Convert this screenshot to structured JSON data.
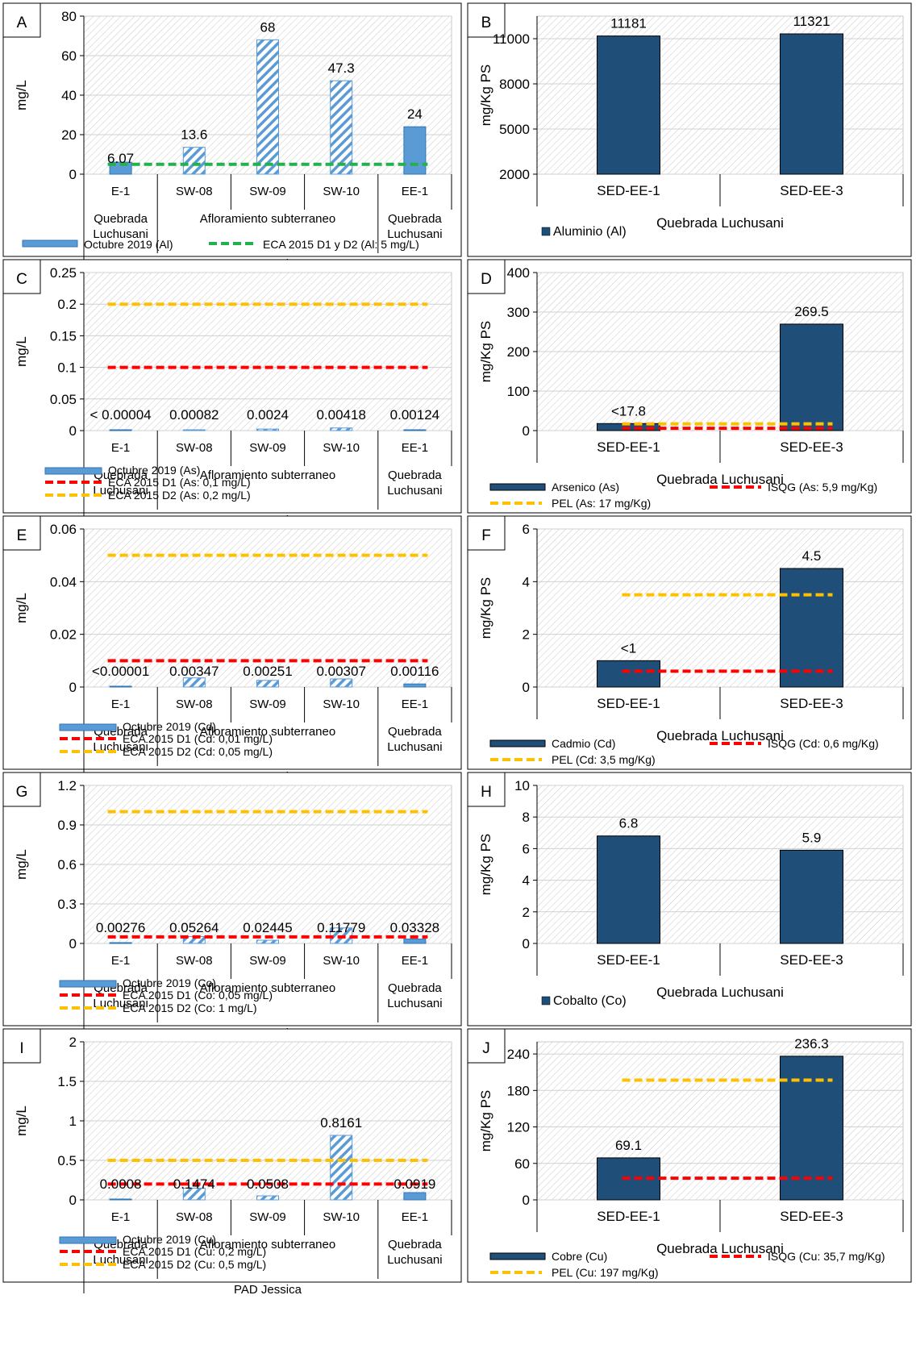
{
  "chart_data": [
    {
      "panel": "A",
      "type": "bar",
      "ylabel": "mg/L",
      "ylim": [
        0,
        80
      ],
      "yticks": [
        0,
        20,
        40,
        60,
        80
      ],
      "categories": [
        "E-1",
        "SW-08",
        "SW-09",
        "SW-10",
        "EE-1"
      ],
      "bar_styles": [
        "solid",
        "hatch",
        "hatch",
        "hatch",
        "solid"
      ],
      "groups": [
        {
          "label": [
            "Quebrada",
            "Luchusani"
          ],
          "from": 0,
          "to": 0
        },
        {
          "label": [
            "Afloramiento subterraneo"
          ],
          "from": 1,
          "to": 3
        },
        {
          "label": [
            "Quebrada",
            "Luchusani"
          ],
          "from": 4,
          "to": 4
        }
      ],
      "super_group": "PAD Jessica",
      "series": [
        {
          "name": "Octubre 2019 (Al)",
          "values": [
            6.07,
            13.6,
            68,
            47.3,
            24
          ],
          "data_labels": [
            "6.07",
            "13.6",
            "68",
            "47.3",
            "24"
          ],
          "color": "#5b9bd5"
        }
      ],
      "reference_lines": [
        {
          "name": "ECA 2015 D1 y D2 (Al: 5 mg/L)",
          "value": 5,
          "color": "#22b14c"
        }
      ],
      "legend": "bottom-inline"
    },
    {
      "panel": "B",
      "type": "bar",
      "ylabel": "mg/Kg PS",
      "ylim": [
        2000,
        12500
      ],
      "yticks": [
        2000,
        5000,
        8000,
        11000
      ],
      "categories": [
        "SED-EE-1",
        "SED-EE-3"
      ],
      "super_group": "Quebrada Luchusani",
      "series": [
        {
          "name": "Aluminio (Al)",
          "values": [
            11181,
            11321
          ],
          "data_labels": [
            "11181",
            "11321"
          ],
          "color": "#1f4e79"
        }
      ],
      "reference_lines": [],
      "legend": "bottom"
    },
    {
      "panel": "C",
      "type": "bar",
      "ylabel": "mg/L",
      "ylim": [
        0,
        0.25
      ],
      "yticks": [
        0,
        0.05,
        0.1,
        0.15,
        0.2,
        0.25
      ],
      "categories": [
        "E-1",
        "SW-08",
        "SW-09",
        "SW-10",
        "EE-1"
      ],
      "bar_styles": [
        "solid",
        "hatch",
        "hatch",
        "hatch",
        "solid"
      ],
      "groups": [
        {
          "label": [
            "Quebrada",
            "Luchusani"
          ],
          "from": 0,
          "to": 0
        },
        {
          "label": [
            "Afloramiento subterraneo"
          ],
          "from": 1,
          "to": 3
        },
        {
          "label": [
            "Quebrada",
            "Luchusani"
          ],
          "from": 4,
          "to": 4
        }
      ],
      "super_group": "PAD Jessica",
      "series": [
        {
          "name": "Octubre 2019 (As)",
          "values": [
            4e-05,
            0.00082,
            0.0024,
            0.00418,
            0.00124
          ],
          "data_labels": [
            "< 0.00004",
            "0.00082",
            "0.0024",
            "0.00418",
            "0.00124"
          ],
          "color": "#5b9bd5"
        }
      ],
      "reference_lines": [
        {
          "name": "ECA 2015 D1 (As: 0,1 mg/L)",
          "value": 0.1,
          "color": "#ff0000"
        },
        {
          "name": "ECA 2015 D2 (As: 0,2 mg/L)",
          "value": 0.2,
          "color": "#ffc000"
        }
      ],
      "legend": "bottom-stacked"
    },
    {
      "panel": "D",
      "type": "bar",
      "ylabel": "mg/Kg PS",
      "ylim": [
        0,
        400
      ],
      "yticks": [
        0,
        100,
        200,
        300,
        400
      ],
      "categories": [
        "SED-EE-1",
        "SED-EE-3"
      ],
      "super_group": "Quebrada Luchusani",
      "series": [
        {
          "name": "Arsenico (As)",
          "values": [
            17.8,
            269.5
          ],
          "data_labels": [
            "<17.8",
            "269.5"
          ],
          "color": "#1f4e79"
        }
      ],
      "reference_lines": [
        {
          "name": "ISQG (As: 5,9 mg/Kg)",
          "value": 5.9,
          "color": "#ff0000"
        },
        {
          "name": "PEL (As: 17 mg/Kg)",
          "value": 17,
          "color": "#ffc000"
        }
      ],
      "legend": "bottom-grid"
    },
    {
      "panel": "E",
      "type": "bar",
      "ylabel": "mg/L",
      "ylim": [
        0,
        0.06
      ],
      "yticks": [
        0,
        0.02,
        0.04,
        0.06
      ],
      "categories": [
        "E-1",
        "SW-08",
        "SW-09",
        "SW-10",
        "EE-1"
      ],
      "bar_styles": [
        "solid",
        "hatch",
        "hatch",
        "hatch",
        "solid"
      ],
      "groups": [
        {
          "label": [
            "Quebrada",
            "Luchusani"
          ],
          "from": 0,
          "to": 0
        },
        {
          "label": [
            "Afloramiento subterraneo"
          ],
          "from": 1,
          "to": 3
        },
        {
          "label": [
            "Quebrada",
            "Luchusani"
          ],
          "from": 4,
          "to": 4
        }
      ],
      "super_group": "PAD Jessica",
      "series": [
        {
          "name": "Octubre 2019 (Cd)",
          "values": [
            1e-05,
            0.00347,
            0.00251,
            0.00307,
            0.00116
          ],
          "data_labels": [
            "<0.00001",
            "0.00347",
            "0.00251",
            "0.00307",
            "0.00116"
          ],
          "color": "#5b9bd5"
        }
      ],
      "reference_lines": [
        {
          "name": "ECA 2015 D1 (Cd: 0,01 mg/L)",
          "value": 0.01,
          "color": "#ff0000"
        },
        {
          "name": "ECA 2015 D2 (Cd: 0,05 mg/L)",
          "value": 0.05,
          "color": "#ffc000"
        }
      ],
      "legend": "bottom-stacked"
    },
    {
      "panel": "F",
      "type": "bar",
      "ylabel": "mg/Kg PS",
      "ylim": [
        0,
        6
      ],
      "yticks": [
        0,
        2,
        4,
        6
      ],
      "categories": [
        "SED-EE-1",
        "SED-EE-3"
      ],
      "super_group": "Quebrada Luchusani",
      "series": [
        {
          "name": "Cadmio (Cd)",
          "values": [
            1,
            4.5
          ],
          "data_labels": [
            "<1",
            "4.5"
          ],
          "color": "#1f4e79"
        }
      ],
      "reference_lines": [
        {
          "name": "ISQG (Cd: 0,6 mg/Kg)",
          "value": 0.6,
          "color": "#ff0000"
        },
        {
          "name": "PEL (Cd: 3,5 mg/Kg)",
          "value": 3.5,
          "color": "#ffc000"
        }
      ],
      "legend": "bottom-grid"
    },
    {
      "panel": "G",
      "type": "bar",
      "ylabel": "mg/L",
      "ylim": [
        0,
        1.2
      ],
      "yticks": [
        0,
        0.3,
        0.6,
        0.9,
        1.2
      ],
      "categories": [
        "E-1",
        "SW-08",
        "SW-09",
        "SW-10",
        "EE-1"
      ],
      "bar_styles": [
        "solid",
        "hatch",
        "hatch",
        "hatch",
        "solid"
      ],
      "groups": [
        {
          "label": [
            "Quebrada",
            "Luchusani"
          ],
          "from": 0,
          "to": 0
        },
        {
          "label": [
            "Afloramiento subterraneo"
          ],
          "from": 1,
          "to": 3
        },
        {
          "label": [
            "Quebrada",
            "Luchusani"
          ],
          "from": 4,
          "to": 4
        }
      ],
      "super_group": "PAD Jessica",
      "series": [
        {
          "name": "Octubre 2019 (Co)",
          "values": [
            0.00276,
            0.05264,
            0.02445,
            0.11779,
            0.03328
          ],
          "data_labels": [
            "0.00276",
            "0.05264",
            "0.02445",
            "0.11779",
            "0.03328"
          ],
          "color": "#5b9bd5"
        }
      ],
      "reference_lines": [
        {
          "name": "ECA 2015 D1 (Co: 0,05 mg/L)",
          "value": 0.05,
          "color": "#ff0000"
        },
        {
          "name": "ECA 2015 D2 (Co: 1 mg/L)",
          "value": 1,
          "color": "#ffc000"
        }
      ],
      "legend": "bottom-stacked"
    },
    {
      "panel": "H",
      "type": "bar",
      "ylabel": "mg/Kg PS",
      "ylim": [
        0,
        10
      ],
      "yticks": [
        0,
        2,
        4,
        6,
        8,
        10
      ],
      "categories": [
        "SED-EE-1",
        "SED-EE-3"
      ],
      "super_group": "Quebrada Luchusani",
      "series": [
        {
          "name": "Cobalto (Co)",
          "values": [
            6.8,
            5.9
          ],
          "data_labels": [
            "6.8",
            "5.9"
          ],
          "color": "#1f4e79"
        }
      ],
      "reference_lines": [],
      "legend": "bottom"
    },
    {
      "panel": "I",
      "type": "bar",
      "ylabel": "mg/L",
      "ylim": [
        0,
        2
      ],
      "yticks": [
        0,
        0.5,
        1,
        1.5,
        2
      ],
      "categories": [
        "E-1",
        "SW-08",
        "SW-09",
        "SW-10",
        "EE-1"
      ],
      "bar_styles": [
        "solid",
        "hatch",
        "hatch",
        "hatch",
        "solid"
      ],
      "groups": [
        {
          "label": [
            "Quebrada",
            "Luchusani"
          ],
          "from": 0,
          "to": 0
        },
        {
          "label": [
            "Afloramiento subterraneo"
          ],
          "from": 1,
          "to": 3
        },
        {
          "label": [
            "Quebrada",
            "Luchusani"
          ],
          "from": 4,
          "to": 4
        }
      ],
      "super_group": "PAD Jessica",
      "series": [
        {
          "name": "Octubre 2019 (Cu)",
          "values": [
            0.0008,
            0.1474,
            0.0508,
            0.8161,
            0.0919
          ],
          "data_labels": [
            "0.0008",
            "0.1474",
            "0.0508",
            "0.8161",
            "0.0919"
          ],
          "color": "#5b9bd5"
        }
      ],
      "reference_lines": [
        {
          "name": "ECA 2015 D1 (Cu: 0,2 mg/L)",
          "value": 0.2,
          "color": "#ff0000"
        },
        {
          "name": "ECA 2015 D2 (Cu: 0,5 mg/L)",
          "value": 0.5,
          "color": "#ffc000"
        }
      ],
      "legend": "bottom-stacked"
    },
    {
      "panel": "J",
      "type": "bar",
      "ylabel": "mg/Kg PS",
      "ylim": [
        0,
        260
      ],
      "yticks": [
        0,
        60,
        120,
        180,
        240
      ],
      "categories": [
        "SED-EE-1",
        "SED-EE-3"
      ],
      "super_group": "Quebrada Luchusani",
      "series": [
        {
          "name": "Cobre (Cu)",
          "values": [
            69.1,
            236.3
          ],
          "data_labels": [
            "69.1",
            "236.3"
          ],
          "color": "#1f4e79"
        }
      ],
      "reference_lines": [
        {
          "name": "ISQG (Cu: 35,7 mg/Kg)",
          "value": 35.7,
          "color": "#ff0000"
        },
        {
          "name": "PEL (Cu: 197 mg/Kg)",
          "value": 197,
          "color": "#ffc000"
        }
      ],
      "legend": "bottom-grid"
    }
  ]
}
